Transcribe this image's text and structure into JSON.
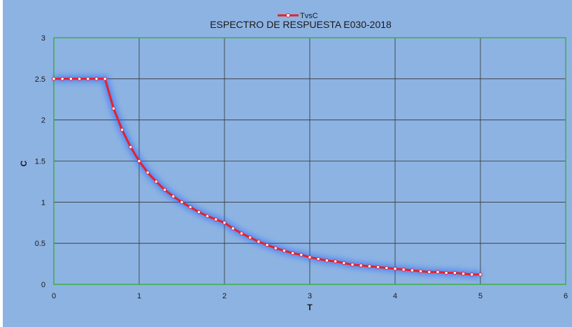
{
  "chart_data": {
    "type": "line",
    "title": "ESPECTRO DE RESPUESTA E030-2018",
    "xlabel": "T",
    "ylabel": "C",
    "xlim": [
      0,
      6
    ],
    "ylim": [
      0,
      3
    ],
    "x_ticks": [
      0,
      1,
      2,
      3,
      4,
      5,
      6
    ],
    "y_ticks": [
      0,
      0.5,
      1,
      1.5,
      2,
      2.5,
      3
    ],
    "grid": true,
    "legend": "top-center",
    "series": [
      {
        "name": "TvsC",
        "color": "#e8202a",
        "points": [
          [
            0,
            2.5
          ],
          [
            0.1,
            2.5
          ],
          [
            0.2,
            2.5
          ],
          [
            0.3,
            2.5
          ],
          [
            0.4,
            2.5
          ],
          [
            0.5,
            2.5
          ],
          [
            0.6,
            2.5
          ],
          [
            0.7,
            2.14
          ],
          [
            0.8,
            1.88
          ],
          [
            0.9,
            1.67
          ],
          [
            1.0,
            1.5
          ],
          [
            1.1,
            1.36
          ],
          [
            1.2,
            1.25
          ],
          [
            1.3,
            1.15
          ],
          [
            1.4,
            1.07
          ],
          [
            1.5,
            1.0
          ],
          [
            1.6,
            0.94
          ],
          [
            1.7,
            0.88
          ],
          [
            1.8,
            0.83
          ],
          [
            1.9,
            0.79
          ],
          [
            2.0,
            0.75
          ],
          [
            2.1,
            0.68
          ],
          [
            2.2,
            0.62
          ],
          [
            2.3,
            0.57
          ],
          [
            2.4,
            0.52
          ],
          [
            2.5,
            0.48
          ],
          [
            2.6,
            0.44
          ],
          [
            2.7,
            0.41
          ],
          [
            2.8,
            0.38
          ],
          [
            2.9,
            0.36
          ],
          [
            3.0,
            0.33
          ],
          [
            3.1,
            0.31
          ],
          [
            3.2,
            0.29
          ],
          [
            3.3,
            0.28
          ],
          [
            3.4,
            0.26
          ],
          [
            3.5,
            0.24
          ],
          [
            3.6,
            0.23
          ],
          [
            3.7,
            0.22
          ],
          [
            3.8,
            0.21
          ],
          [
            3.9,
            0.2
          ],
          [
            4.0,
            0.19
          ],
          [
            4.1,
            0.18
          ],
          [
            4.2,
            0.17
          ],
          [
            4.3,
            0.16
          ],
          [
            4.4,
            0.15
          ],
          [
            4.5,
            0.15
          ],
          [
            4.6,
            0.14
          ],
          [
            4.7,
            0.14
          ],
          [
            4.8,
            0.13
          ],
          [
            4.9,
            0.12
          ],
          [
            5.0,
            0.12
          ]
        ]
      }
    ]
  },
  "colors": {
    "background": "#8db3e2",
    "plot_border": "#3cb043",
    "grid": "#333333",
    "series": "#e8202a",
    "glow": "#1f5fff"
  }
}
